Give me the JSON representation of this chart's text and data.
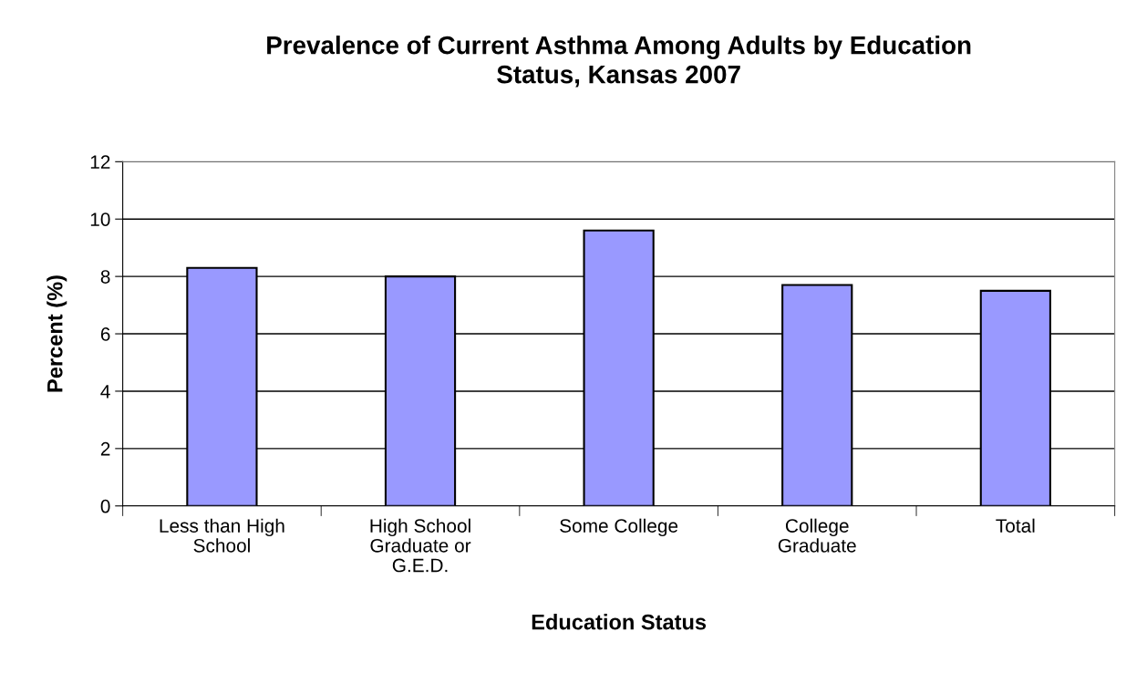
{
  "chart_data": {
    "type": "bar",
    "title": "Prevalence of Current Asthma Among Adults by Education\nStatus, Kansas 2007",
    "xlabel": "Education Status",
    "ylabel": "Percent (%)",
    "categories": [
      "Less than High\nSchool",
      "High School\nGraduate or\nG.E.D.",
      "Some College",
      "College\nGraduate",
      "Total"
    ],
    "values": [
      8.3,
      8.0,
      9.6,
      7.7,
      7.5
    ],
    "color": "#9999ff",
    "ylim": [
      0,
      12
    ],
    "yticks": [
      0,
      2,
      4,
      6,
      8,
      10,
      12
    ],
    "grid": "y",
    "legend": false
  }
}
